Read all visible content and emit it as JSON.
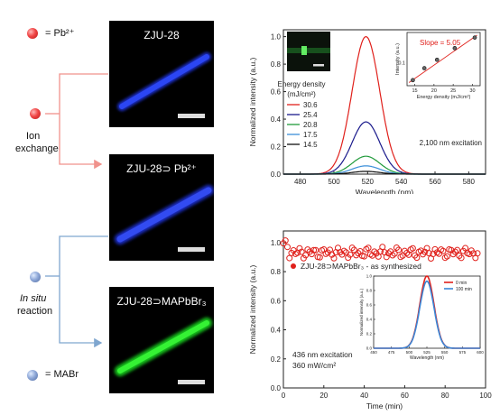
{
  "legend": {
    "pb_label": "= Pb²⁺",
    "mabr_label": "= MABr",
    "pb_color": "#e53935",
    "mabr_color": "#7f9acb"
  },
  "process": {
    "ion_exchange_line1": "Ion",
    "ion_exchange_line2": "exchange",
    "insitu_line1": "In situ",
    "insitu_line2": "reaction",
    "arrow_color_ion": "#f0928c",
    "arrow_color_insitu": "#7fa6cf"
  },
  "images": {
    "img1_title": "ZJU-28",
    "img2_title": "ZJU-28⊃ Pb²⁺",
    "img3_title": "ZJU-28⊃MAPbBr₃"
  },
  "chart_data": [
    {
      "type": "line",
      "xlabel": "Wavelength (nm)",
      "ylabel": "Normalized intensity (a.u.)",
      "xlim": [
        470,
        590
      ],
      "ylim": [
        0,
        1.05
      ],
      "xticks": [
        480,
        500,
        520,
        540,
        560,
        580
      ],
      "yticks": [
        0.0,
        0.2,
        0.4,
        0.6,
        0.8,
        1.0
      ],
      "peak_wavelength": 519,
      "legend_title_line1": "Energy density",
      "legend_title_line2": "(mJ/cm²)",
      "annotation": "2,100 nm excitation",
      "series": [
        {
          "name": "30.6",
          "color": "#e0201b",
          "peak": 1.0
        },
        {
          "name": "25.4",
          "color": "#1a1a8c",
          "peak": 0.38
        },
        {
          "name": "20.8",
          "color": "#1f9a3a",
          "peak": 0.13
        },
        {
          "name": "17.5",
          "color": "#3b8fd9",
          "peak": 0.06
        },
        {
          "name": "14.5",
          "color": "#111111",
          "peak": 0.02
        }
      ],
      "inset": {
        "type": "scatter",
        "xlabel": "Energy density (mJ/cm²)",
        "ylabel": "Intensity (a.u.)",
        "xlim": [
          13,
          32
        ],
        "xticks": [
          15,
          20,
          25,
          30
        ],
        "ytick_label": "0.1",
        "slope_label": "Slope = 5.05",
        "fit_color": "#e0201b",
        "x": [
          14.5,
          17.5,
          20.8,
          25.4,
          30.6
        ],
        "y": [
          0.02,
          0.06,
          0.13,
          0.38,
          1.0
        ]
      }
    },
    {
      "type": "scatter",
      "xlabel": "Time (min)",
      "ylabel": "Normalized intensity (a.u.)",
      "xlim": [
        0,
        100
      ],
      "ylim": [
        0,
        1.08
      ],
      "xticks": [
        0,
        20,
        40,
        60,
        80,
        100
      ],
      "yticks": [
        0.0,
        0.2,
        0.4,
        0.6,
        0.8,
        1.0
      ],
      "series_name": "ZJU-28⊃MAPbBr₃ - as synthesized",
      "color": "#e0201b",
      "mean_value": 0.93,
      "annotation_line1": "436 nm excitation",
      "annotation_line2": "360 mW/cm²",
      "inset": {
        "type": "line",
        "xlabel": "Wavelength (nm)",
        "ylabel": "Normalized intensity (a.u.)",
        "xlim": [
          450,
          600
        ],
        "ylim": [
          0,
          1.0
        ],
        "xticks": [
          450,
          475,
          500,
          525,
          550,
          575,
          600
        ],
        "yticks": [
          0.0,
          0.2,
          0.4,
          0.6,
          0.8,
          1.0
        ],
        "series": [
          {
            "name": "0 min",
            "color": "#e0201b",
            "peak": 1.0
          },
          {
            "name": "100 min",
            "color": "#3a86d6",
            "peak": 0.93
          }
        ],
        "peak_wavelength": 525
      }
    }
  ]
}
